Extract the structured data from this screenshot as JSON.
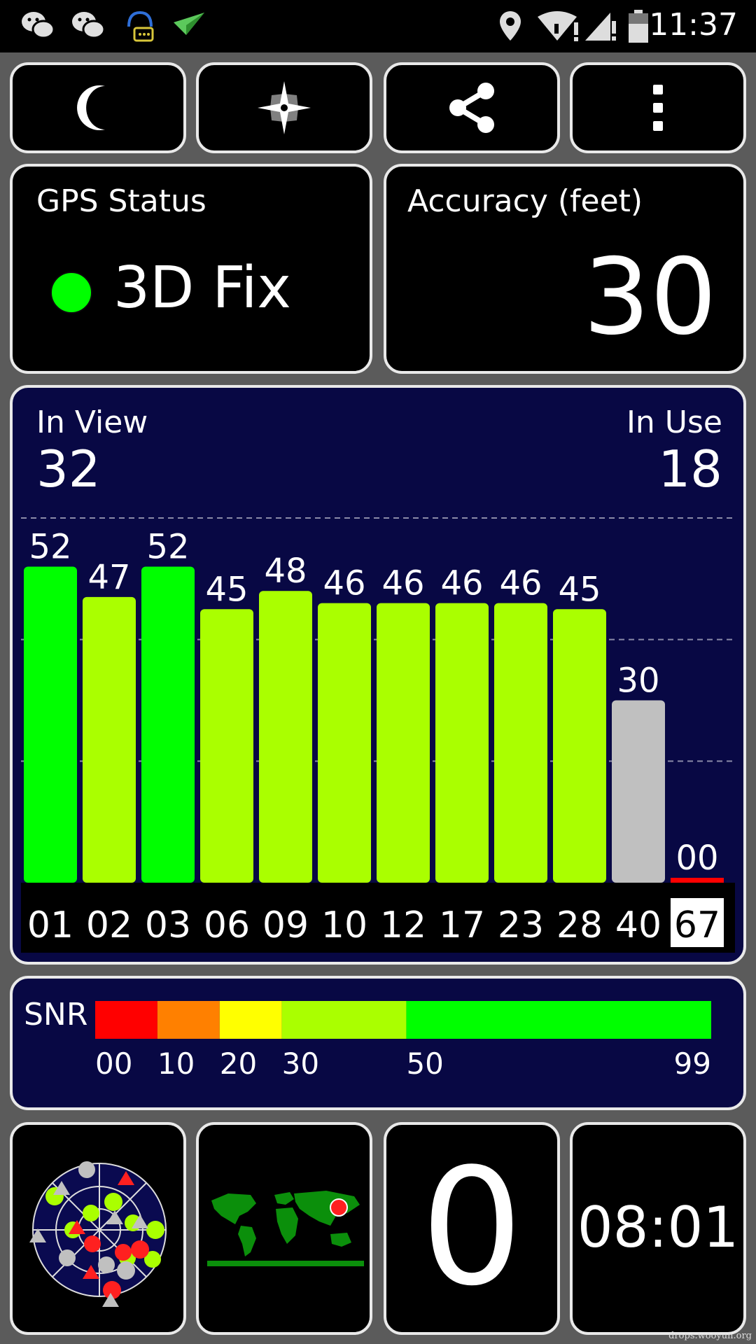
{
  "status_bar": {
    "time": "11:37",
    "left_icons": [
      "wechat-icon",
      "wechat-icon",
      "messaging-icon",
      "paper-plane-icon"
    ],
    "right_icons": [
      "location-pin-icon",
      "wifi-alert-icon",
      "signal-alert-icon",
      "battery-icon"
    ]
  },
  "toolbar": {
    "buttons": [
      {
        "icon": "moon-icon"
      },
      {
        "icon": "compass-star-icon"
      },
      {
        "icon": "share-icon"
      },
      {
        "icon": "more-vertical-icon"
      }
    ]
  },
  "gps_status": {
    "label": "GPS Status",
    "value": "3D Fix",
    "indicator_color": "#00ff00"
  },
  "accuracy": {
    "label": "Accuracy (feet)",
    "value": "30"
  },
  "satellites": {
    "in_view_label": "In View",
    "in_view": "32",
    "in_use_label": "In Use",
    "in_use": "18"
  },
  "chart_data": {
    "type": "bar",
    "categories": [
      "01",
      "02",
      "03",
      "06",
      "09",
      "10",
      "12",
      "17",
      "23",
      "28",
      "40",
      "67"
    ],
    "values": [
      52,
      47,
      52,
      45,
      48,
      46,
      46,
      46,
      46,
      45,
      30,
      0
    ],
    "value_labels": [
      "52",
      "47",
      "52",
      "45",
      "48",
      "46",
      "46",
      "46",
      "46",
      "45",
      "30",
      "00"
    ],
    "bar_colors": [
      "#00ff00",
      "#aaff00",
      "#00ff00",
      "#aaff00",
      "#aaff00",
      "#aaff00",
      "#aaff00",
      "#aaff00",
      "#aaff00",
      "#aaff00",
      "#c0c0c0",
      "#ff0000"
    ],
    "highlighted_category": "67",
    "ylim": [
      0,
      60
    ],
    "grid": true
  },
  "snr_legend": {
    "label": "SNR",
    "segments": [
      {
        "tick": "00",
        "color": "#ff0000"
      },
      {
        "tick": "10",
        "color": "#ff8000"
      },
      {
        "tick": "20",
        "color": "#ffff00"
      },
      {
        "tick": "30",
        "color": "#aaff00"
      },
      {
        "tick": "50",
        "color": "#00ff00"
      }
    ],
    "end_tick": "99"
  },
  "bottom": {
    "speed": "0",
    "clock": "08:01"
  },
  "watermark": "drops.wooyun.org"
}
